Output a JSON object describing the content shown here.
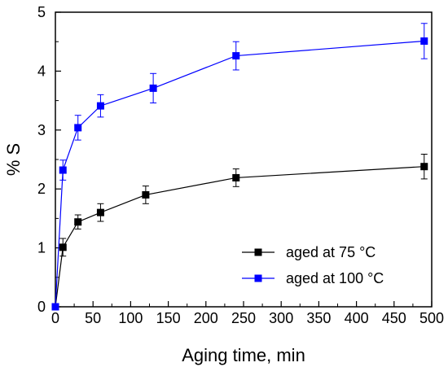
{
  "chart_data": {
    "type": "line",
    "xlabel": "Aging time, min",
    "ylabel": "% S",
    "xlim": [
      0,
      500
    ],
    "ylim": [
      0,
      5
    ],
    "x_ticks": [
      "0",
      "50",
      "100",
      "150",
      "200",
      "250",
      "300",
      "350",
      "400",
      "450",
      "500"
    ],
    "y_ticks": [
      "0",
      "1",
      "2",
      "3",
      "4",
      "5"
    ],
    "grid": false,
    "legend_position": "bottom-right",
    "series": [
      {
        "name": "aged at 75 °C",
        "color": "#000000",
        "marker": "square",
        "x": [
          0,
          10,
          30,
          60,
          120,
          240,
          490
        ],
        "y": [
          0,
          1.01,
          1.44,
          1.6,
          1.9,
          2.19,
          2.38
        ],
        "error": [
          0,
          0.15,
          0.12,
          0.15,
          0.15,
          0.15,
          0.21
        ]
      },
      {
        "name": "aged at 100 °C",
        "color": "#0000ff",
        "marker": "square",
        "x": [
          0,
          10,
          30,
          60,
          130,
          240,
          490
        ],
        "y": [
          0,
          2.32,
          3.04,
          3.41,
          3.71,
          4.26,
          4.51
        ],
        "error": [
          0,
          0.17,
          0.21,
          0.19,
          0.25,
          0.24,
          0.3
        ]
      }
    ]
  }
}
